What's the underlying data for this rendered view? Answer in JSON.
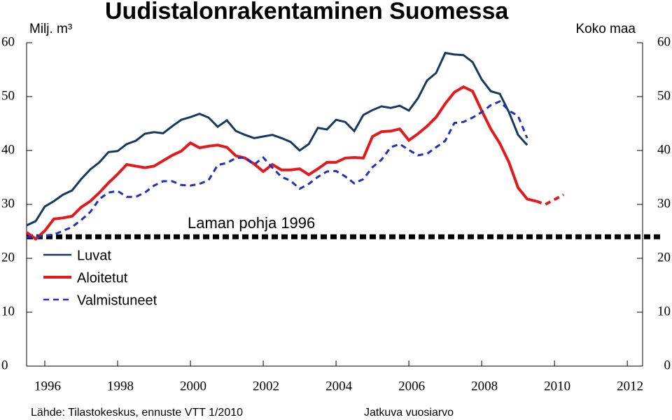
{
  "chart_data": {
    "type": "line",
    "title": "Uudistalonrakentaminen Suomessa",
    "y_label": "Milj. m³",
    "region_label": "Koko maa",
    "source": "Lähde: Tilastokeskus, ennuste VTT 1/2010",
    "note": "Jatkuva vuosiarvo",
    "reference_line": {
      "label": "Laman pohja 1996",
      "value": 24,
      "color": "#000000"
    },
    "x": [
      1996,
      1996.25,
      1996.5,
      1996.75,
      1997,
      1997.25,
      1997.5,
      1997.75,
      1998,
      1998.25,
      1998.5,
      1998.75,
      1999,
      1999.25,
      1999.5,
      1999.75,
      2000,
      2000.25,
      2000.5,
      2000.75,
      2001,
      2001.25,
      2001.5,
      2001.75,
      2002,
      2002.25,
      2002.5,
      2002.75,
      2003,
      2003.25,
      2003.5,
      2003.75,
      2004,
      2004.25,
      2004.5,
      2004.75,
      2005,
      2005.25,
      2005.5,
      2005.75,
      2006,
      2006.25,
      2006.5,
      2006.75,
      2007,
      2007.25,
      2007.5,
      2007.75,
      2008,
      2008.25,
      2008.5,
      2008.75,
      2009,
      2009.25,
      2009.5,
      2009.75,
      2010,
      2010.25,
      2010.5,
      2010.75
    ],
    "series": [
      {
        "name": "Luvat",
        "color": "#17375e",
        "dash": false,
        "values": [
          26.1,
          26.9,
          29.6,
          30.6,
          31.8,
          32.6,
          34.7,
          36.5,
          37.8,
          39.7,
          39.9,
          41.2,
          41.8,
          43.1,
          43.4,
          43.2,
          44.5,
          45.7,
          46.2,
          46.8,
          46.1,
          44.4,
          45.6,
          43.6,
          42.9,
          42.3,
          42.6,
          42.9,
          42.3,
          41.6,
          40.0,
          41.2,
          44.2,
          43.9,
          45.7,
          45.3,
          43.6,
          46.6,
          47.5,
          48.2,
          47.9,
          48.3,
          47.4,
          49.7,
          53.0,
          54.4,
          58.1,
          57.8,
          57.7,
          56.4,
          53.2,
          51.0,
          50.5,
          47.1,
          42.9,
          41.0,
          null,
          null,
          null,
          null
        ]
      },
      {
        "name": "Aloitetut",
        "color": "#e31a1c",
        "dash": false,
        "dash_from": 56,
        "values": [
          24.8,
          23.6,
          25.1,
          27.3,
          27.5,
          27.8,
          29.5,
          30.6,
          32.2,
          34.0,
          35.6,
          37.4,
          37.1,
          36.8,
          37.1,
          38.1,
          39.1,
          39.9,
          41.4,
          40.5,
          40.8,
          41.0,
          40.6,
          39.0,
          38.6,
          37.5,
          36.1,
          37.4,
          36.4,
          36.4,
          36.6,
          35.5,
          36.6,
          37.8,
          37.8,
          38.6,
          38.7,
          38.6,
          42.6,
          43.5,
          43.6,
          44.0,
          41.9,
          43.1,
          44.5,
          46.2,
          48.7,
          50.8,
          51.8,
          51.0,
          47.4,
          44.0,
          41.3,
          37.8,
          33.1,
          31.0,
          30.6,
          30.0,
          30.9,
          31.8
        ]
      },
      {
        "name": "Valmistuneet",
        "color": "#1f2fbf",
        "dash": true,
        "values": [
          23.9,
          24.0,
          24.2,
          24.4,
          25.1,
          25.8,
          27.1,
          28.6,
          31.0,
          32.2,
          32.5,
          31.4,
          31.4,
          32.2,
          33.5,
          34.3,
          34.3,
          33.6,
          33.5,
          33.8,
          34.5,
          37.3,
          37.7,
          38.6,
          38.7,
          37.4,
          38.7,
          36.8,
          35.1,
          34.4,
          32.9,
          33.8,
          35.1,
          36.1,
          36.2,
          35.2,
          33.9,
          34.7,
          36.9,
          38.3,
          40.6,
          41.2,
          40.1,
          39.1,
          39.4,
          40.6,
          41.8,
          45.1,
          45.3,
          46.1,
          47.1,
          48.4,
          49.1,
          47.4,
          46.4,
          42.3,
          null,
          null,
          null,
          null
        ]
      }
    ],
    "xlim": [
      1996,
      2012.92
    ],
    "xticks": [
      {
        "value": 1996.5,
        "label": "1996"
      },
      {
        "value": 1998.5,
        "label": "1998"
      },
      {
        "value": 2000.5,
        "label": "2000"
      },
      {
        "value": 2002.5,
        "label": "2002"
      },
      {
        "value": 2004.5,
        "label": "2004"
      },
      {
        "value": 2006.5,
        "label": "2006"
      },
      {
        "value": 2008.5,
        "label": "2008"
      },
      {
        "value": 2010.5,
        "label": "2010"
      },
      {
        "value": 2012.5,
        "label": "2012"
      }
    ],
    "ylim": [
      0,
      60
    ],
    "yticks": [
      0,
      10,
      20,
      30,
      40,
      50,
      60
    ],
    "y2lim": [
      0,
      60
    ],
    "y2ticks": [
      0,
      10,
      20,
      30,
      40,
      50,
      60
    ],
    "legend": "left"
  }
}
